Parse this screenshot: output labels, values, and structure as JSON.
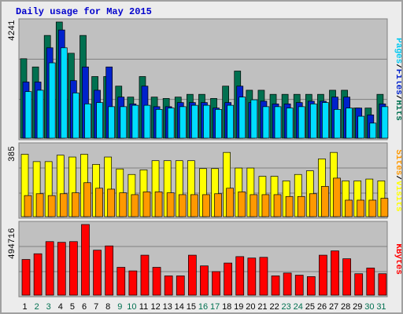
{
  "title": "Daily usage for May 2015",
  "colors": {
    "hits": "#007050",
    "files": "#0022cc",
    "pages": "#00ddff",
    "visits": "#ffff00",
    "sites": "#ff9900",
    "kbytes": "#ff0000",
    "weekday_label": "#000000",
    "weekend_label": "#007050",
    "title": "#0000cc",
    "panel_bg": "#c0c0c0"
  },
  "right_labels": {
    "top": [
      {
        "text": "Pages",
        "color": "#00c8f0"
      },
      {
        "text": "/",
        "color": "#000000"
      },
      {
        "text": "Files",
        "color": "#0022cc"
      },
      {
        "text": "/",
        "color": "#000000"
      },
      {
        "text": "Hits",
        "color": "#007050"
      }
    ],
    "middle": [
      {
        "text": "Sites",
        "color": "#ff9900"
      },
      {
        "text": "/",
        "color": "#000000"
      },
      {
        "text": "Visits",
        "color": "#ffff00"
      }
    ],
    "bottom": [
      {
        "text": "KBytes",
        "color": "#ff0000"
      }
    ]
  },
  "chart_data": [
    {
      "type": "bar",
      "panel": "top",
      "ymax_label": "4241",
      "ylim": [
        0,
        4241
      ],
      "categories": [
        "1",
        "2",
        "3",
        "4",
        "5",
        "6",
        "7",
        "8",
        "9",
        "10",
        "11",
        "12",
        "13",
        "14",
        "15",
        "16",
        "17",
        "18",
        "19",
        "20",
        "21",
        "22",
        "23",
        "24",
        "25",
        "26",
        "27",
        "28",
        "29",
        "30",
        "31"
      ],
      "weekend_days": [
        "2",
        "3",
        "9",
        "10",
        "16",
        "17",
        "23",
        "24",
        "30",
        "31"
      ],
      "series": [
        {
          "name": "Hits",
          "values": [
            2900,
            2600,
            3750,
            4241,
            3100,
            3750,
            2250,
            2250,
            1900,
            1500,
            2250,
            1500,
            1450,
            1500,
            1600,
            1600,
            1450,
            1900,
            2450,
            1750,
            1750,
            1600,
            1600,
            1600,
            1600,
            1600,
            1750,
            1750,
            1100,
            1100,
            1600
          ]
        },
        {
          "name": "Files",
          "values": [
            2050,
            2050,
            3300,
            3950,
            2100,
            2600,
            1750,
            2600,
            1500,
            1250,
            1900,
            1150,
            1150,
            1300,
            1300,
            1300,
            1100,
            1300,
            1900,
            1300,
            1350,
            1250,
            1250,
            1300,
            1350,
            1350,
            1500,
            1500,
            1100,
            850,
            1250
          ]
        },
        {
          "name": "Pages",
          "values": [
            1700,
            1750,
            2750,
            3300,
            1650,
            1250,
            1300,
            1150,
            1150,
            1200,
            1200,
            1050,
            1100,
            1150,
            1200,
            1200,
            1050,
            1200,
            1500,
            1400,
            1150,
            1150,
            1100,
            1150,
            1250,
            1300,
            1050,
            1100,
            800,
            550,
            1150
          ]
        }
      ]
    },
    {
      "type": "bar",
      "panel": "middle",
      "ymax_label": "385",
      "ylim": [
        0,
        385
      ],
      "categories": [
        "1",
        "2",
        "3",
        "4",
        "5",
        "6",
        "7",
        "8",
        "9",
        "10",
        "11",
        "12",
        "13",
        "14",
        "15",
        "16",
        "17",
        "18",
        "19",
        "20",
        "21",
        "22",
        "23",
        "24",
        "25",
        "26",
        "27",
        "28",
        "29",
        "30",
        "31"
      ],
      "series": [
        {
          "name": "Visits",
          "values": [
            340,
            300,
            300,
            335,
            325,
            340,
            285,
            325,
            260,
            230,
            255,
            305,
            305,
            305,
            305,
            262,
            262,
            350,
            265,
            265,
            220,
            220,
            195,
            230,
            250,
            315,
            350,
            195,
            195,
            205,
            195
          ]
        },
        {
          "name": "Sites",
          "values": [
            115,
            125,
            115,
            125,
            130,
            185,
            155,
            150,
            130,
            120,
            135,
            135,
            130,
            120,
            120,
            120,
            125,
            155,
            135,
            120,
            120,
            120,
            110,
            110,
            125,
            165,
            210,
            90,
            90,
            90,
            100
          ]
        }
      ]
    },
    {
      "type": "bar",
      "panel": "bottom",
      "ymax_label": "494716",
      "ylim": [
        0,
        494716
      ],
      "categories": [
        "1",
        "2",
        "3",
        "4",
        "5",
        "6",
        "7",
        "8",
        "9",
        "10",
        "11",
        "12",
        "13",
        "14",
        "15",
        "16",
        "17",
        "18",
        "19",
        "20",
        "21",
        "22",
        "23",
        "24",
        "25",
        "26",
        "27",
        "28",
        "29",
        "30",
        "31"
      ],
      "series": [
        {
          "name": "KBytes",
          "values": [
            250000,
            290000,
            375000,
            370000,
            375000,
            494716,
            315000,
            345000,
            195000,
            170000,
            280000,
            195000,
            135000,
            135000,
            280000,
            205000,
            165000,
            225000,
            270000,
            260000,
            265000,
            135000,
            155000,
            140000,
            130000,
            280000,
            310000,
            255000,
            150000,
            190000,
            150000
          ]
        }
      ]
    }
  ]
}
